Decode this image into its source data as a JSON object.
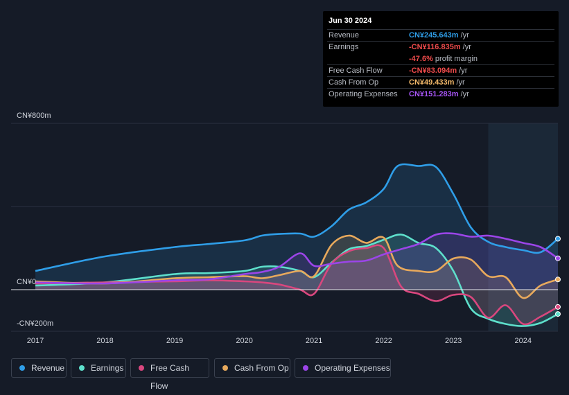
{
  "tooltip": {
    "date": "Jun 30 2024",
    "rows": [
      {
        "label": "Revenue",
        "value": "CN¥245.643m",
        "unit": " /yr",
        "color": "#2f9ee8"
      },
      {
        "label": "Earnings",
        "value": "-CN¥116.835m",
        "unit": " /yr",
        "color": "#ee4b4b"
      },
      {
        "label": "",
        "value": "-47.6%",
        "unit": " profit margin",
        "color": "#ee4b4b"
      },
      {
        "label": "Free Cash Flow",
        "value": "-CN¥83.094m",
        "unit": " /yr",
        "color": "#ee4b4b"
      },
      {
        "label": "Cash From Op",
        "value": "CN¥49.433m",
        "unit": " /yr",
        "color": "#f2b86a"
      },
      {
        "label": "Operating Expenses",
        "value": "CN¥151.283m",
        "unit": " /yr",
        "color": "#a855f7"
      }
    ]
  },
  "legend": [
    {
      "label": "Revenue",
      "color": "#2f9ee8"
    },
    {
      "label": "Earnings",
      "color": "#5ee0cc"
    },
    {
      "label": "Free Cash Flow",
      "color": "#d9477e"
    },
    {
      "label": "Cash From Op",
      "color": "#e8a95c"
    },
    {
      "label": "Operating Expenses",
      "color": "#9b45e8"
    }
  ],
  "chart_data": {
    "type": "area",
    "title": "",
    "xlabel": "",
    "ylabel": "",
    "ylim": [
      -200,
      800
    ],
    "xlim": [
      2016.97,
      2024.5
    ],
    "y_tick_labels": [
      "CN¥800m",
      "CN¥0",
      "-CN¥200m"
    ],
    "y_tick_values": [
      800,
      0,
      -200
    ],
    "x_tick_labels": [
      "2017",
      "2018",
      "2019",
      "2020",
      "2021",
      "2022",
      "2023",
      "2024"
    ],
    "x_tick_values": [
      2017,
      2018,
      2019,
      2020,
      2021,
      2022,
      2023,
      2024
    ],
    "highlight_start": 2023.5,
    "series": [
      {
        "name": "Revenue",
        "color": "#2f9ee8",
        "x": [
          2017,
          2018,
          2019,
          2019.5,
          2020,
          2020.25,
          2020.5,
          2020.8,
          2021,
          2021.25,
          2021.5,
          2021.75,
          2022,
          2022.2,
          2022.5,
          2022.75,
          2023,
          2023.25,
          2023.5,
          2023.75,
          2024,
          2024.25,
          2024.5
        ],
        "values": [
          90,
          160,
          205,
          220,
          237,
          260,
          268,
          270,
          255,
          305,
          385,
          420,
          485,
          595,
          595,
          590,
          460,
          300,
          230,
          205,
          190,
          180,
          245
        ]
      },
      {
        "name": "Earnings",
        "color": "#5ee0cc",
        "x": [
          2017,
          2018,
          2019,
          2019.5,
          2020,
          2020.25,
          2020.5,
          2020.8,
          2021,
          2021.25,
          2021.5,
          2021.75,
          2022,
          2022.25,
          2022.5,
          2022.75,
          2023,
          2023.25,
          2023.5,
          2023.75,
          2024,
          2024.25,
          2024.5
        ],
        "values": [
          20,
          35,
          75,
          80,
          90,
          110,
          110,
          90,
          60,
          130,
          195,
          210,
          240,
          265,
          225,
          200,
          90,
          -90,
          -140,
          -165,
          -175,
          -160,
          -117
        ]
      },
      {
        "name": "Free Cash Flow",
        "color": "#d9477e",
        "x": [
          2017,
          2018,
          2019,
          2019.5,
          2020,
          2020.25,
          2020.5,
          2020.8,
          2021,
          2021.25,
          2021.5,
          2021.75,
          2022,
          2022.25,
          2022.5,
          2022.75,
          2023,
          2023.25,
          2023.5,
          2023.75,
          2024,
          2024.25,
          2024.5
        ],
        "values": [
          30,
          35,
          40,
          45,
          40,
          35,
          25,
          0,
          -20,
          125,
          185,
          200,
          200,
          15,
          -20,
          -55,
          -25,
          -35,
          -135,
          -75,
          -165,
          -130,
          -83
        ]
      },
      {
        "name": "Cash From Op",
        "color": "#e8a95c",
        "x": [
          2017,
          2018,
          2019,
          2019.5,
          2020,
          2020.25,
          2020.5,
          2020.8,
          2021,
          2021.25,
          2021.5,
          2021.75,
          2022,
          2022.2,
          2022.5,
          2022.75,
          2023,
          2023.25,
          2023.5,
          2023.75,
          2024,
          2024.25,
          2024.5
        ],
        "values": [
          40,
          30,
          55,
          60,
          65,
          55,
          70,
          90,
          65,
          215,
          260,
          225,
          250,
          115,
          90,
          90,
          150,
          145,
          65,
          60,
          -40,
          20,
          49
        ]
      },
      {
        "name": "Operating Expenses",
        "color": "#9b45e8",
        "x": [
          2017,
          2018,
          2019,
          2019.5,
          2020,
          2020.25,
          2020.5,
          2020.8,
          2021,
          2021.25,
          2021.5,
          2021.75,
          2022,
          2022.25,
          2022.5,
          2022.75,
          2023,
          2023.25,
          2023.5,
          2023.75,
          2024,
          2024.25,
          2024.5
        ],
        "values": [
          35,
          30,
          45,
          50,
          75,
          85,
          110,
          175,
          115,
          125,
          135,
          140,
          170,
          195,
          220,
          265,
          270,
          255,
          260,
          245,
          225,
          205,
          151
        ]
      }
    ]
  }
}
